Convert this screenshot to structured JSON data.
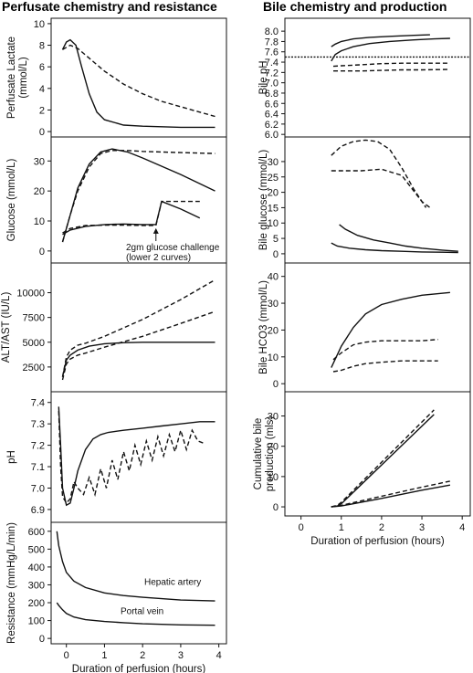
{
  "figure": {
    "left_title": "Perfusate chemistry and resistance",
    "right_title": "Bile chemistry and production"
  },
  "chart_data": [
    {
      "id": "perfusate-lactate",
      "column": "left",
      "type": "line",
      "ylabel": "Perfusate Lactate\n(mmol/L)",
      "xlim": [
        -0.4,
        4.2
      ],
      "ylim": [
        -0.5,
        10.5
      ],
      "yticks": [
        0,
        2,
        4,
        6,
        8,
        10
      ],
      "series": [
        {
          "style": "dashed",
          "x": [
            -0.1,
            0.1,
            0.3,
            0.6,
            1.0,
            1.5,
            2.0,
            2.5,
            3.0,
            3.5,
            3.9
          ],
          "y": [
            7.6,
            8.0,
            7.7,
            6.8,
            5.6,
            4.4,
            3.5,
            2.8,
            2.3,
            1.8,
            1.4
          ]
        },
        {
          "style": "solid",
          "x": [
            -0.1,
            0.0,
            0.1,
            0.25,
            0.4,
            0.6,
            0.8,
            1.0,
            1.5,
            2.0,
            3.0,
            3.9
          ],
          "y": [
            7.6,
            8.3,
            8.5,
            8.0,
            6.0,
            3.5,
            1.8,
            1.1,
            0.6,
            0.5,
            0.4,
            0.4
          ]
        }
      ]
    },
    {
      "id": "glucose",
      "column": "left",
      "type": "line",
      "ylabel": "Glucose (mmol/L)",
      "xlim": [
        -0.4,
        4.2
      ],
      "ylim": [
        -4,
        38
      ],
      "yticks": [
        0,
        10,
        20,
        30
      ],
      "annotations": [
        "2gm glucose  challenge",
        "(lower 2 curves)"
      ],
      "annotation_x": 2.35,
      "series": [
        {
          "style": "dashed",
          "x": [
            -0.1,
            0.1,
            0.3,
            0.6,
            0.9,
            1.2,
            1.6,
            2.0,
            3.0,
            3.9
          ],
          "y": [
            3,
            12,
            20,
            28,
            32.5,
            33.5,
            33.5,
            33.2,
            32.8,
            32.5
          ]
        },
        {
          "style": "solid",
          "x": [
            -0.1,
            0.1,
            0.3,
            0.6,
            0.9,
            1.2,
            1.6,
            2.0,
            3.0,
            3.9
          ],
          "y": [
            3,
            12,
            21,
            29,
            33,
            34,
            33,
            31,
            25.5,
            20
          ]
        },
        {
          "style": "dashed",
          "x": [
            -0.1,
            0.1,
            0.5,
            1.0,
            1.5,
            2.0,
            2.35,
            2.5,
            3.0,
            3.5
          ],
          "y": [
            6,
            7.5,
            8.5,
            8.6,
            8.6,
            8.5,
            8.5,
            16.5,
            16.5,
            16.5
          ]
        },
        {
          "style": "solid",
          "x": [
            -0.1,
            0.1,
            0.5,
            1.0,
            1.5,
            2.0,
            2.35,
            2.5,
            3.0,
            3.5
          ],
          "y": [
            5.5,
            7,
            8.2,
            8.8,
            9,
            8.8,
            8.8,
            16.5,
            14,
            11
          ]
        }
      ]
    },
    {
      "id": "alt-ast",
      "column": "left",
      "type": "line",
      "ylabel": "ALT/AST (IU/L)",
      "xlim": [
        -0.4,
        4.2
      ],
      "ylim": [
        0,
        13000
      ],
      "yticks": [
        2500,
        5000,
        7500,
        10000
      ],
      "series": [
        {
          "style": "dashed",
          "x": [
            -0.1,
            0.0,
            0.1,
            0.3,
            0.5,
            1.0,
            2.0,
            3.0,
            3.9
          ],
          "y": [
            1500,
            3500,
            4200,
            4700,
            4900,
            5600,
            7300,
            9300,
            11300
          ]
        },
        {
          "style": "dashed",
          "x": [
            -0.1,
            0.0,
            0.1,
            0.3,
            0.5,
            1.0,
            2.0,
            3.0,
            3.9
          ],
          "y": [
            1200,
            2800,
            3300,
            3700,
            3900,
            4500,
            5600,
            6900,
            8100
          ]
        },
        {
          "style": "solid",
          "x": [
            -0.1,
            0.0,
            0.1,
            0.3,
            0.6,
            1.0,
            1.5,
            2.0,
            3.0,
            3.9
          ],
          "y": [
            1500,
            3200,
            3700,
            4200,
            4600,
            4850,
            4950,
            5000,
            5000,
            5000
          ]
        }
      ]
    },
    {
      "id": "ph",
      "column": "left",
      "type": "line",
      "ylabel": "pH",
      "xlim": [
        -0.4,
        4.2
      ],
      "ylim": [
        6.84,
        7.45
      ],
      "yticks": [
        6.9,
        7.0,
        7.1,
        7.2,
        7.3,
        7.4
      ],
      "series": [
        {
          "style": "solid",
          "x": [
            -0.2,
            -0.15,
            -0.1,
            0.0,
            0.1,
            0.2,
            0.3,
            0.5,
            0.7,
            0.9,
            1.1,
            1.5,
            2.0,
            2.5,
            3.0,
            3.5,
            3.9
          ],
          "y": [
            7.38,
            7.2,
            7.0,
            6.92,
            6.93,
            7.0,
            7.08,
            7.18,
            7.23,
            7.25,
            7.26,
            7.27,
            7.28,
            7.29,
            7.3,
            7.31,
            7.31
          ]
        },
        {
          "style": "dashed",
          "x": [
            -0.2,
            -0.15,
            -0.1,
            0.0,
            0.1,
            0.2,
            0.3,
            0.45,
            0.6,
            0.75,
            0.9,
            1.05,
            1.2,
            1.35,
            1.5,
            1.65,
            1.8,
            1.95,
            2.1,
            2.25,
            2.4,
            2.55,
            2.7,
            2.85,
            3.0,
            3.15,
            3.3,
            3.45,
            3.6
          ],
          "y": [
            7.36,
            7.1,
            6.96,
            6.93,
            6.95,
            7.03,
            7.0,
            6.97,
            7.05,
            6.97,
            7.09,
            7.0,
            7.13,
            7.04,
            7.17,
            7.08,
            7.2,
            7.11,
            7.22,
            7.13,
            7.24,
            7.15,
            7.25,
            7.17,
            7.27,
            7.18,
            7.27,
            7.22,
            7.21
          ]
        }
      ]
    },
    {
      "id": "resistance",
      "column": "left",
      "type": "line",
      "ylabel": "Resistance (mmHg/L/min)",
      "xlabel": "Duration of perfusion (hours)",
      "xlim": [
        -0.4,
        4.2
      ],
      "xticks": [
        0,
        1,
        2,
        3,
        4
      ],
      "ylim": [
        -30,
        650
      ],
      "yticks": [
        0,
        100,
        200,
        300,
        400,
        500,
        600
      ],
      "labels": [
        "Hepatic artery",
        "Portal vein"
      ],
      "series": [
        {
          "name": "Hepatic artery",
          "style": "solid",
          "x": [
            -0.25,
            -0.2,
            -0.1,
            0.0,
            0.2,
            0.5,
            1.0,
            1.5,
            2.0,
            3.0,
            3.9
          ],
          "y": [
            600,
            520,
            430,
            370,
            320,
            285,
            255,
            240,
            230,
            215,
            210
          ]
        },
        {
          "name": "Portal vein",
          "style": "solid",
          "x": [
            -0.25,
            -0.2,
            -0.1,
            0.0,
            0.2,
            0.5,
            1.0,
            1.5,
            2.0,
            3.0,
            3.9
          ],
          "y": [
            200,
            185,
            160,
            140,
            120,
            105,
            95,
            88,
            82,
            76,
            74
          ]
        }
      ]
    },
    {
      "id": "bile-ph",
      "column": "right",
      "type": "line",
      "ylabel": "Bile pH",
      "xlim": [
        -0.4,
        4.2
      ],
      "ylim": [
        5.95,
        8.25
      ],
      "yticks": [
        6.0,
        6.2,
        6.4,
        6.6,
        6.8,
        7.0,
        7.2,
        7.4,
        7.6,
        7.8,
        8.0
      ],
      "reference_line": 7.5,
      "series": [
        {
          "style": "solid",
          "x": [
            0.75,
            0.85,
            1.0,
            1.3,
            1.7,
            2.2,
            2.8,
            3.2
          ],
          "y": [
            7.7,
            7.75,
            7.8,
            7.85,
            7.88,
            7.9,
            7.92,
            7.93
          ]
        },
        {
          "style": "solid",
          "x": [
            0.75,
            0.85,
            1.0,
            1.3,
            1.7,
            2.2,
            2.8,
            3.3,
            3.7
          ],
          "y": [
            7.42,
            7.55,
            7.62,
            7.7,
            7.76,
            7.8,
            7.83,
            7.85,
            7.86
          ]
        },
        {
          "style": "dashed",
          "x": [
            0.8,
            1.0,
            1.5,
            2.0,
            2.5,
            3.0,
            3.7
          ],
          "y": [
            7.32,
            7.33,
            7.35,
            7.37,
            7.38,
            7.38,
            7.38
          ]
        },
        {
          "style": "dashed",
          "x": [
            0.8,
            1.0,
            1.5,
            2.0,
            2.5,
            3.0,
            3.7
          ],
          "y": [
            7.23,
            7.23,
            7.23,
            7.24,
            7.25,
            7.25,
            7.26
          ]
        }
      ]
    },
    {
      "id": "bile-glucose",
      "column": "right",
      "type": "line",
      "ylabel": "Bile glucose (mmol/L)",
      "xlim": [
        -0.4,
        4.2
      ],
      "ylim": [
        -3,
        38
      ],
      "yticks": [
        0,
        5,
        10,
        15,
        20,
        25,
        30
      ],
      "series": [
        {
          "style": "dashed",
          "x": [
            0.75,
            1.0,
            1.3,
            1.6,
            1.9,
            2.2,
            2.5,
            2.8,
            3.1
          ],
          "y": [
            32,
            35,
            36.5,
            37,
            36.5,
            34,
            28,
            21,
            15
          ]
        },
        {
          "style": "dashed",
          "x": [
            0.75,
            1.0,
            1.5,
            2.0,
            2.5,
            3.0,
            3.2
          ],
          "y": [
            27,
            27,
            27,
            27.5,
            25.5,
            17,
            15
          ]
        },
        {
          "style": "solid",
          "x": [
            0.95,
            1.1,
            1.4,
            1.8,
            2.2,
            2.6,
            3.0,
            3.5,
            3.9
          ],
          "y": [
            9.5,
            8,
            6,
            4.5,
            3.5,
            2.5,
            1.8,
            1.2,
            0.8
          ]
        },
        {
          "style": "solid",
          "x": [
            0.75,
            0.9,
            1.2,
            1.6,
            2.0,
            2.5,
            3.0,
            3.5,
            3.9
          ],
          "y": [
            3.5,
            2.5,
            1.8,
            1.3,
            1.0,
            0.8,
            0.6,
            0.5,
            0.4
          ]
        }
      ]
    },
    {
      "id": "bile-hco3",
      "column": "right",
      "type": "line",
      "ylabel": "Bile HCO3 (mmol/L)",
      "xlim": [
        -0.4,
        4.2
      ],
      "ylim": [
        -3,
        45
      ],
      "yticks": [
        0,
        10,
        20,
        30,
        40
      ],
      "series": [
        {
          "style": "solid",
          "x": [
            0.75,
            1.0,
            1.3,
            1.6,
            2.0,
            2.5,
            3.0,
            3.7
          ],
          "y": [
            6,
            14,
            21,
            26,
            29.5,
            31.5,
            33,
            34
          ]
        },
        {
          "style": "dashed",
          "x": [
            0.8,
            1.0,
            1.3,
            1.6,
            2.0,
            2.5,
            3.0,
            3.4
          ],
          "y": [
            9,
            11.5,
            14.5,
            15.5,
            16,
            16,
            16,
            16.5
          ]
        },
        {
          "style": "dashed",
          "x": [
            0.8,
            1.0,
            1.3,
            1.6,
            2.0,
            2.5,
            3.0,
            3.4
          ],
          "y": [
            4.5,
            5,
            6.5,
            7.5,
            8,
            8.5,
            8.5,
            8.5
          ]
        }
      ]
    },
    {
      "id": "cumulative-bile",
      "column": "right",
      "type": "line",
      "ylabel": "Cumulative bile\nproduction (mls)",
      "xlabel": "Duration of perfusion (hours)",
      "xlim": [
        -0.4,
        4.2
      ],
      "xticks": [
        0,
        1,
        2,
        3,
        4
      ],
      "ylim": [
        -3,
        38
      ],
      "yticks": [
        0,
        10,
        20,
        30
      ],
      "series": [
        {
          "style": "dashed",
          "x": [
            0.75,
            0.9,
            1.0,
            3.3
          ],
          "y": [
            0,
            0.5,
            1.5,
            32
          ]
        },
        {
          "style": "solid",
          "x": [
            0.75,
            0.9,
            1.0,
            3.3
          ],
          "y": [
            0,
            0.3,
            1,
            30.5
          ]
        },
        {
          "style": "dashed",
          "x": [
            0.75,
            1.0,
            2.0,
            3.0,
            3.7
          ],
          "y": [
            0,
            0.5,
            3.5,
            6.5,
            8.5
          ]
        },
        {
          "style": "solid",
          "x": [
            0.75,
            1.0,
            2.0,
            3.0,
            3.7
          ],
          "y": [
            0,
            0.3,
            2.8,
            5.5,
            7.2
          ]
        }
      ]
    }
  ]
}
